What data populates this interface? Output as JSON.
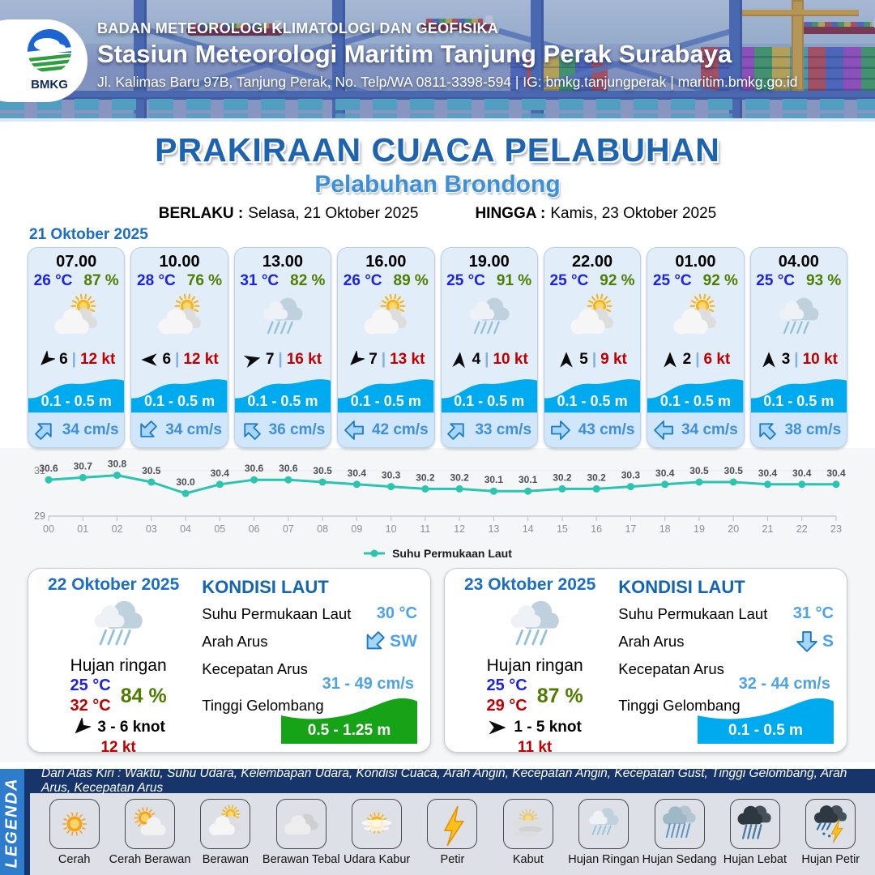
{
  "colors": {
    "temp_blue": "#1c22e0",
    "humidity_green": "#4e7d00",
    "gust_red": "#c00000",
    "wave_band_blue": "#00aaef",
    "wave_band_green": "#17a317",
    "chart_line_teal": "#2bc4b0",
    "title_blue": "#1d63b0",
    "subtitle_blue": "#3d8fd6",
    "sea_value_blue": "#4da3e8",
    "legend_bar_blue": "#2e7ccc",
    "legend_strip_navy": "#17356b"
  },
  "header": {
    "logo_text": "BMKG",
    "agency": "BADAN METEOROLOGI KLIMATOLOGI DAN GEOFISIKA",
    "station": "Stasiun Meteorologi Maritim Tanjung Perak Surabaya",
    "address": "Jl. Kalimas Baru 97B, Tanjung Perak, No. Telp/WA 0811-3398-594 | IG: bmkg.tanjungperak | maritim.bmkg.go.id"
  },
  "title": {
    "main": "PRAKIRAAN CUACA PELABUHAN",
    "subtitle": "Pelabuhan Brondong"
  },
  "validity": {
    "berlaku_label": "BERLAKU :",
    "berlaku_value": "Selasa, 21 Oktober 2025",
    "hingga_label": "HINGGA :",
    "hingga_value": "Kamis, 23 Oktober 2025"
  },
  "day1": {
    "date": "21 Oktober 2025",
    "cards": [
      {
        "time": "07.00",
        "temp": "26 °C",
        "humidity": "87 %",
        "icon": "berawan",
        "wind_deg": 225,
        "wind_speed": "6",
        "sep": "|",
        "gust": "12 kt",
        "wave": "0.1 - 0.5 m",
        "current_deg": 45,
        "current_speed": "34 cm/s"
      },
      {
        "time": "10.00",
        "temp": "28 °C",
        "humidity": "76 %",
        "icon": "berawan",
        "wind_deg": 270,
        "wind_speed": "6",
        "sep": "|",
        "gust": "12 kt",
        "wave": "0.1 - 0.5 m",
        "current_deg": 225,
        "current_speed": "34 cm/s"
      },
      {
        "time": "13.00",
        "temp": "31 °C",
        "humidity": "82 %",
        "icon": "hujan-ringan",
        "wind_deg": 75,
        "wind_speed": "7",
        "sep": "|",
        "gust": "16 kt",
        "wave": "0.1 - 0.5 m",
        "current_deg": 315,
        "current_speed": "36 cm/s"
      },
      {
        "time": "16.00",
        "temp": "26 °C",
        "humidity": "89 %",
        "icon": "berawan",
        "wind_deg": 225,
        "wind_speed": "7",
        "sep": "|",
        "gust": "13 kt",
        "wave": "0.1 - 0.5 m",
        "current_deg": 270,
        "current_speed": "42 cm/s"
      },
      {
        "time": "19.00",
        "temp": "25 °C",
        "humidity": "91 %",
        "icon": "hujan-ringan",
        "wind_deg": 5,
        "wind_speed": "4",
        "sep": "|",
        "gust": "10 kt",
        "wave": "0.1 - 0.5 m",
        "current_deg": 45,
        "current_speed": "33 cm/s"
      },
      {
        "time": "22.00",
        "temp": "25 °C",
        "humidity": "92 %",
        "icon": "berawan",
        "wind_deg": 0,
        "wind_speed": "5",
        "sep": "|",
        "gust": "9 kt",
        "wave": "0.1 - 0.5 m",
        "current_deg": 90,
        "current_speed": "43 cm/s"
      },
      {
        "time": "01.00",
        "temp": "25 °C",
        "humidity": "92 %",
        "icon": "berawan",
        "wind_deg": 0,
        "wind_speed": "2",
        "sep": "|",
        "gust": "6 kt",
        "wave": "0.1 - 0.5 m",
        "current_deg": 270,
        "current_speed": "34 cm/s"
      },
      {
        "time": "04.00",
        "temp": "25 °C",
        "humidity": "93 %",
        "icon": "hujan-ringan",
        "wind_deg": 0,
        "wind_speed": "3",
        "sep": "|",
        "gust": "10 kt",
        "wave": "0.1 - 0.5 m",
        "current_deg": 315,
        "current_speed": "38 cm/s"
      }
    ]
  },
  "chart_data": {
    "type": "line",
    "series_name": "Suhu Permukaan Laut",
    "x": [
      "00",
      "01",
      "02",
      "03",
      "04",
      "05",
      "06",
      "07",
      "08",
      "09",
      "10",
      "11",
      "12",
      "13",
      "14",
      "15",
      "16",
      "17",
      "18",
      "19",
      "20",
      "21",
      "22",
      "23"
    ],
    "values": [
      30.6,
      30.7,
      30.8,
      30.5,
      30.0,
      30.4,
      30.6,
      30.6,
      30.5,
      30.4,
      30.3,
      30.2,
      30.2,
      30.1,
      30.1,
      30.2,
      30.2,
      30.3,
      30.4,
      30.5,
      30.5,
      30.4,
      30.4,
      30.4
    ],
    "ylim": [
      29,
      31
    ],
    "yticks": [
      29,
      31
    ],
    "line_color": "#2bc4b0",
    "legend_position": "bottom",
    "grid": true
  },
  "sea_labels": {
    "kondisi": "KONDISI LAUT",
    "sst": "Suhu Permukaan Laut",
    "arah": "Arah Arus",
    "kecepatan": "Kecepatan Arus",
    "gelombang": "Tinggi Gelombang"
  },
  "day_cards": [
    {
      "date": "22 Oktober 2025",
      "icon": "hujan-ringan",
      "condition": "Hujan ringan",
      "temp_min": "25 °C",
      "temp_max": "32 °C",
      "humidity": "84 %",
      "wind_deg": 225,
      "wind_range": "3  - 6 knot",
      "gust": "12 kt",
      "sst": "30 °C",
      "current_dir": "SW",
      "current_deg": 225,
      "current_speed": "31  - 49 cm/s",
      "wave": "0.5 - 1.25 m",
      "wave_color": "#17a317"
    },
    {
      "date": "23 Oktober 2025",
      "icon": "hujan-ringan",
      "condition": "Hujan ringan",
      "temp_min": "25 °C",
      "temp_max": "29 °C",
      "humidity": "87 %",
      "wind_deg": 90,
      "wind_range": "1  - 5 knot",
      "gust": "11 kt",
      "sst": "31 °C",
      "current_dir": "S",
      "current_deg": 180,
      "current_speed": "32 - 44 cm/s",
      "wave": "0.1 - 0.5 m",
      "wave_color": "#00aaef"
    }
  ],
  "legend": {
    "title": "LEGENDA",
    "description": "Dari Atas Kiri : Waktu, Suhu Udara, Kelembapan Udara, Kondisi Cuaca, Arah Angin, Kecepatan Angin, Kecepatan Gust, Tinggi Gelombang, Arah Arus, Kecepatan Arus",
    "items": [
      {
        "label": "Cerah",
        "icon": "cerah"
      },
      {
        "label": "Cerah Berawan",
        "icon": "cerah-berawan"
      },
      {
        "label": "Berawan",
        "icon": "berawan"
      },
      {
        "label": "Berawan Tebal",
        "icon": "berawan-tebal"
      },
      {
        "label": "Udara Kabur",
        "icon": "udara-kabur"
      },
      {
        "label": "Petir",
        "icon": "petir"
      },
      {
        "label": "Kabut",
        "icon": "kabut"
      },
      {
        "label": "Hujan Ringan",
        "icon": "hujan-ringan"
      },
      {
        "label": "Hujan Sedang",
        "icon": "hujan-sedang"
      },
      {
        "label": "Hujan Lebat",
        "icon": "hujan-lebat"
      },
      {
        "label": "Hujan Petir",
        "icon": "hujan-petir"
      }
    ]
  }
}
